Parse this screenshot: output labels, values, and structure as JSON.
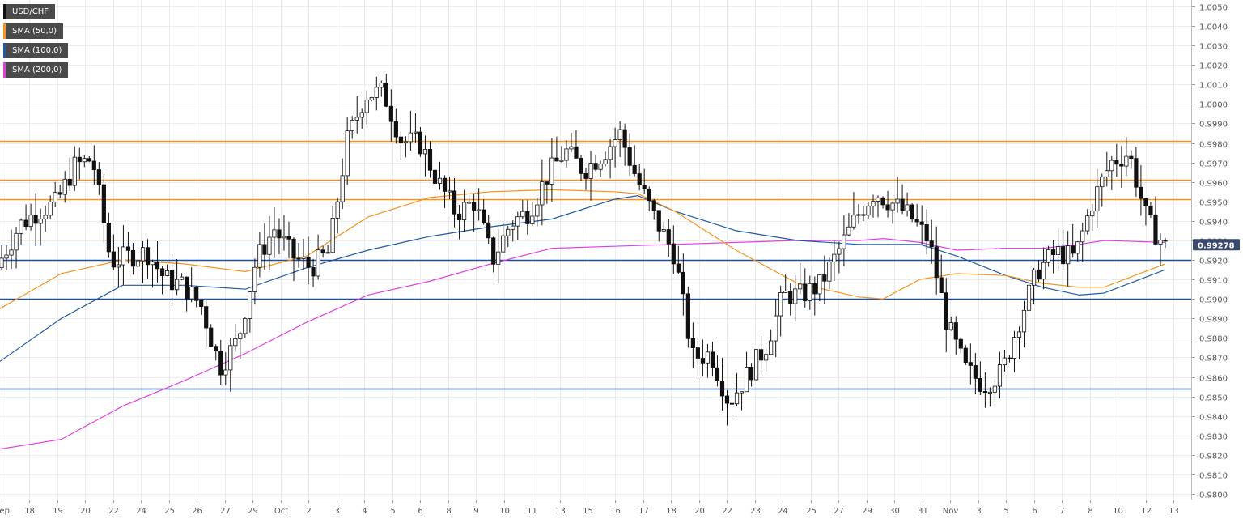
{
  "chart_data": {
    "type": "candlestick",
    "symbol": "USD/CHF",
    "legend": [
      {
        "label": "USD/CHF",
        "color": "#000000"
      },
      {
        "label": "SMA (50,0)",
        "color": "#f7931e"
      },
      {
        "label": "SMA (100,0)",
        "color": "#1f5aa6"
      },
      {
        "label": "SMA (200,0)",
        "color": "#e040e0"
      }
    ],
    "ylim": [
      0.98,
      1.005
    ],
    "y_ticks": [
      "1.0050",
      "1.0040",
      "1.0030",
      "1.0020",
      "1.0010",
      "1.0000",
      "0.9990",
      "0.9980",
      "0.9970",
      "0.9960",
      "0.9950",
      "0.9940",
      "0.9930",
      "0.9920",
      "0.9910",
      "0.9900",
      "0.9890",
      "0.9880",
      "0.9870",
      "0.9860",
      "0.9850",
      "0.9840",
      "0.9830",
      "0.9820",
      "0.9810",
      "0.9800"
    ],
    "x_ticks": [
      "Sep",
      "18",
      "19",
      "20",
      "22",
      "24",
      "25",
      "26",
      "27",
      "29",
      "Oct",
      "2",
      "3",
      "4",
      "5",
      "6",
      "8",
      "9",
      "10",
      "11",
      "13",
      "15",
      "16",
      "17",
      "18",
      "20",
      "22",
      "23",
      "24",
      "25",
      "27",
      "29",
      "30",
      "31",
      "Nov",
      "3",
      "5",
      "6",
      "7",
      "8",
      "10",
      "12",
      "13"
    ],
    "current_price": "0.99278",
    "current_price_value": 0.99278,
    "resistance_levels": [
      0.9981,
      0.9961,
      0.9951
    ],
    "support_levels": [
      0.992,
      0.99,
      0.9854
    ],
    "current_level": 0.99278,
    "close_path": [
      [
        0.9916,
        0.9921
      ],
      [
        0.9924,
        0.9938
      ],
      [
        0.993,
        0.9945
      ],
      [
        0.9928,
        0.9949
      ],
      [
        0.9928,
        0.9968
      ],
      [
        0.9959,
        0.9972
      ],
      [
        0.9928,
        0.9919
      ],
      [
        0.993,
        0.9922
      ],
      [
        0.9914,
        0.9924
      ],
      [
        0.9915,
        0.991
      ],
      [
        0.9908,
        0.9907
      ],
      [
        0.9902,
        0.9896
      ],
      [
        0.989,
        0.9865
      ],
      [
        0.986,
        0.9879
      ],
      [
        0.99,
        0.992
      ],
      [
        0.9926,
        0.9936
      ],
      [
        0.9933,
        0.9922
      ],
      [
        0.9918,
        0.9916
      ],
      [
        0.9911,
        0.9924
      ],
      [
        0.994,
        0.9981
      ],
      [
        0.9988,
        1.0005
      ],
      [
        0.9936,
        1.0006
      ],
      [
        1.0004,
        0.9981
      ],
      [
        0.9995,
        0.998
      ],
      [
        0.9984,
        0.996
      ],
      [
        0.9945,
        0.9944
      ],
      [
        0.9938,
        0.995
      ],
      [
        0.9927,
        0.992
      ],
      [
        0.994,
        0.9939
      ],
      [
        0.9919,
        0.9945
      ],
      [
        0.9944,
        0.9963
      ],
      [
        0.9974,
        0.9976
      ],
      [
        0.9972,
        0.9966
      ],
      [
        0.9975,
        0.9974
      ],
      [
        0.999,
        0.9985
      ],
      [
        0.9977,
        0.996
      ],
      [
        0.9958,
        0.994
      ],
      [
        0.9935,
        0.9923
      ],
      [
        0.9917,
        0.987
      ],
      [
        0.9866,
        0.9872
      ],
      [
        0.9864,
        0.9847
      ],
      [
        0.9853,
        0.9861
      ],
      [
        0.9861,
        0.9875
      ],
      [
        0.988,
        0.9902
      ],
      [
        0.99,
        0.9902
      ],
      [
        0.9905,
        0.9907
      ],
      [
        0.9922,
        0.9924
      ],
      [
        0.9921,
        0.9942
      ],
      [
        0.995,
        0.9955
      ],
      [
        0.9958,
        0.9949
      ],
      [
        0.9945,
        0.9942
      ],
      [
        0.9939,
        0.993
      ],
      [
        0.991,
        0.9887
      ],
      [
        0.987,
        0.9864
      ],
      [
        0.986,
        0.9856
      ],
      [
        0.9853,
        0.9862
      ],
      [
        0.9868,
        0.989
      ],
      [
        0.9895,
        0.9915
      ],
      [
        0.9921,
        0.9924
      ],
      [
        0.993,
        0.9921
      ],
      [
        0.9928,
        0.995
      ],
      [
        0.9954,
        0.997
      ],
      [
        0.9976,
        0.9975
      ],
      [
        0.9962,
        0.994
      ],
      [
        0.9938,
        0.9927
      ]
    ],
    "sma50": [
      [
        0.0,
        0.9895
      ],
      [
        0.05,
        0.9913
      ],
      [
        0.1,
        0.992
      ],
      [
        0.15,
        0.9918
      ],
      [
        0.2,
        0.9914
      ],
      [
        0.25,
        0.9922
      ],
      [
        0.3,
        0.9942
      ],
      [
        0.35,
        0.9952
      ],
      [
        0.4,
        0.9955
      ],
      [
        0.45,
        0.9956
      ],
      [
        0.5,
        0.9955
      ],
      [
        0.52,
        0.9954
      ],
      [
        0.55,
        0.9945
      ],
      [
        0.6,
        0.9925
      ],
      [
        0.65,
        0.9908
      ],
      [
        0.7,
        0.9901
      ],
      [
        0.72,
        0.99
      ],
      [
        0.75,
        0.991
      ],
      [
        0.78,
        0.9913
      ],
      [
        0.82,
        0.9912
      ],
      [
        0.85,
        0.9908
      ],
      [
        0.88,
        0.9906
      ],
      [
        0.9,
        0.9906
      ],
      [
        0.95,
        0.9918
      ]
    ],
    "sma100": [
      [
        0.0,
        0.9868
      ],
      [
        0.05,
        0.989
      ],
      [
        0.1,
        0.9907
      ],
      [
        0.15,
        0.9907
      ],
      [
        0.2,
        0.9905
      ],
      [
        0.25,
        0.9916
      ],
      [
        0.3,
        0.9925
      ],
      [
        0.35,
        0.9932
      ],
      [
        0.4,
        0.9937
      ],
      [
        0.45,
        0.9941
      ],
      [
        0.5,
        0.9951
      ],
      [
        0.52,
        0.9953
      ],
      [
        0.55,
        0.9945
      ],
      [
        0.6,
        0.9935
      ],
      [
        0.65,
        0.993
      ],
      [
        0.7,
        0.9928
      ],
      [
        0.75,
        0.9928
      ],
      [
        0.78,
        0.9922
      ],
      [
        0.82,
        0.9912
      ],
      [
        0.85,
        0.9906
      ],
      [
        0.88,
        0.9902
      ],
      [
        0.9,
        0.9903
      ],
      [
        0.95,
        0.9915
      ]
    ],
    "sma200": [
      [
        0.0,
        0.9823
      ],
      [
        0.05,
        0.9828
      ],
      [
        0.1,
        0.9845
      ],
      [
        0.15,
        0.9858
      ],
      [
        0.2,
        0.9872
      ],
      [
        0.25,
        0.9888
      ],
      [
        0.3,
        0.9902
      ],
      [
        0.35,
        0.9909
      ],
      [
        0.4,
        0.9918
      ],
      [
        0.45,
        0.9926
      ],
      [
        0.5,
        0.9927
      ],
      [
        0.55,
        0.9928
      ],
      [
        0.6,
        0.9929
      ],
      [
        0.65,
        0.993
      ],
      [
        0.7,
        0.993
      ],
      [
        0.72,
        0.9931
      ],
      [
        0.75,
        0.9929
      ],
      [
        0.78,
        0.9925
      ],
      [
        0.82,
        0.9926
      ],
      [
        0.85,
        0.9926
      ],
      [
        0.88,
        0.9928
      ],
      [
        0.9,
        0.993
      ],
      [
        0.95,
        0.9929
      ]
    ]
  }
}
